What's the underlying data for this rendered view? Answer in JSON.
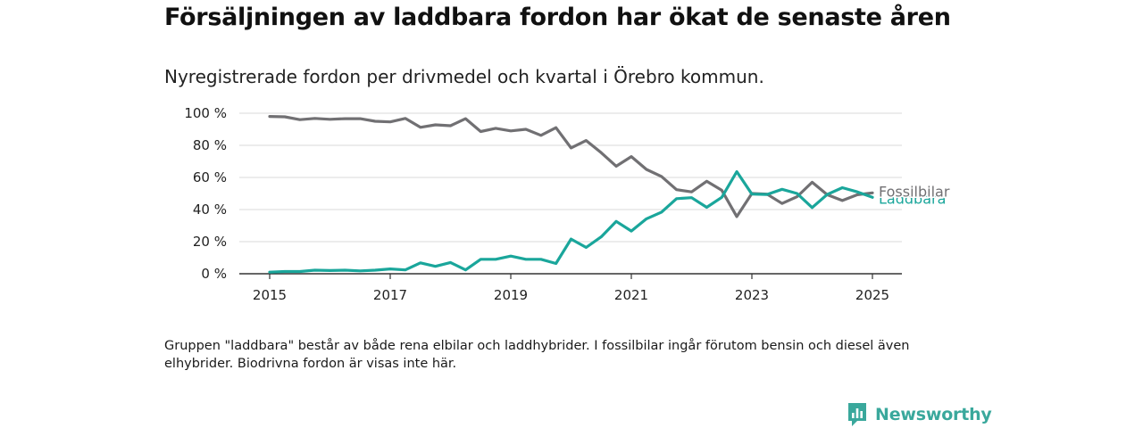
{
  "title": "Försäljningen av laddbara fordon har ökat de senaste åren",
  "subtitle": "Nyregistrerade fordon per drivmedel och kvartal i Örebro kommun.",
  "note": "Gruppen \"laddbara\" består av både rena elbilar och laddhybrider. I fossilbilar ingår förutom bensin och diesel även elhybrider. Biodrivna fordon är visas inte här.",
  "brand": {
    "name": "Newsworthy",
    "icon": "newsworthy-logo-icon",
    "color": "#3aa89c"
  },
  "chart_data": {
    "type": "line",
    "xlim": [
      2015,
      2025.5
    ],
    "ylim": [
      0,
      100
    ],
    "x_ticks": [
      2015,
      2017,
      2019,
      2021,
      2023,
      2025
    ],
    "y_ticks": [
      0,
      20,
      40,
      60,
      80,
      100
    ],
    "y_tick_labels": [
      "0 %",
      "20 %",
      "40 %",
      "60 %",
      "80 %",
      "100 %"
    ],
    "grid": "horizontal",
    "x": [
      2015.0,
      2015.25,
      2015.5,
      2015.75,
      2016.0,
      2016.25,
      2016.5,
      2016.75,
      2017.0,
      2017.25,
      2017.5,
      2017.75,
      2018.0,
      2018.25,
      2018.5,
      2018.75,
      2019.0,
      2019.25,
      2019.5,
      2019.75,
      2020.0,
      2020.25,
      2020.5,
      2020.75,
      2021.0,
      2021.25,
      2021.5,
      2021.75,
      2022.0,
      2022.25,
      2022.5,
      2022.75,
      2023.0,
      2023.25,
      2023.5,
      2023.75,
      2024.0,
      2024.25,
      2024.5,
      2024.75,
      2025.0
    ],
    "series": [
      {
        "name": "Fossilbilar",
        "color": "#717073",
        "values": [
          98,
          97.8,
          96,
          96.8,
          96.2,
          96.6,
          96.6,
          95,
          94.6,
          96.8,
          91.2,
          92.8,
          92.2,
          96.6,
          88.6,
          90.6,
          89,
          90,
          86.2,
          91,
          78.4,
          83,
          75.4,
          67,
          73,
          65,
          60.6,
          52.4,
          51,
          57.6,
          52,
          35.6,
          50,
          49.6,
          43.8,
          48,
          57,
          49.2,
          45.6,
          49.2,
          50.4
        ]
      },
      {
        "name": "Laddbara",
        "color": "#1aa69b",
        "values": [
          1,
          1.4,
          1.4,
          2.2,
          2,
          2.2,
          1.8,
          2.2,
          3,
          2.4,
          6.8,
          4.6,
          7,
          2.4,
          9,
          9,
          11,
          9,
          9,
          6.4,
          21.6,
          16.4,
          23,
          32.6,
          26.6,
          34.2,
          38.4,
          46.8,
          47.4,
          41.4,
          47.6,
          63.6,
          49.6,
          49.4,
          52.6,
          50,
          41.2,
          49.4,
          53.6,
          51,
          47.6
        ]
      }
    ]
  }
}
